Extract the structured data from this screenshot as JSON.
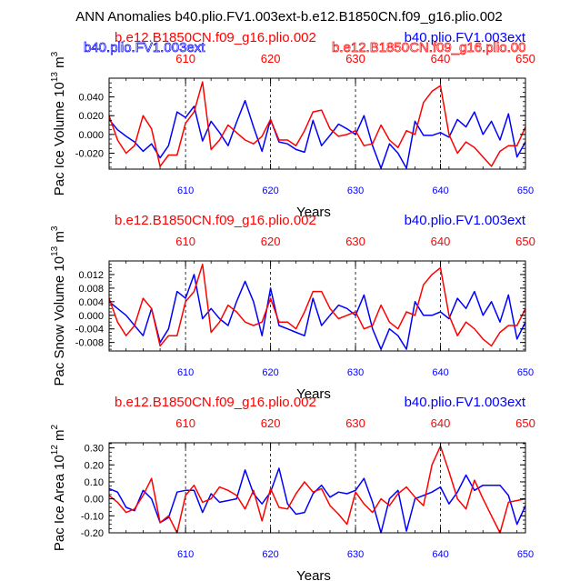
{
  "title": "ANN Anomalies b40.plio.FV1.003ext-b.e12.B1850CN.f09_g16.plio.002",
  "ghost_labels": {
    "blue": "b40.plio.FV1.003ext",
    "red": "b.e12.B1850CN.f09_g16.plio.00"
  },
  "colors": {
    "blue": "#0000ff",
    "red": "#ff0000",
    "axis": "#000000"
  },
  "chart_data": [
    {
      "type": "line",
      "top_label_left": "b.e12.B1850CN.f09_g16.plio.002",
      "top_label_right": "b40.plio.FV1.003ext",
      "xlabel": "Years",
      "ylabel_main": "Pac Ice Volume 10",
      "ylabel_exp": "13",
      "ylabel_unit": " m",
      "ylabel_unit_exp": "3",
      "xlim": [
        601,
        650
      ],
      "ylim": [
        -0.037,
        0.06
      ],
      "yticks": [
        -0.02,
        0.0,
        0.02,
        0.04
      ],
      "ytick_labels": [
        "-0.020",
        "0.000",
        "0.020",
        "0.040"
      ],
      "xticks": [
        610,
        620,
        630,
        640,
        650
      ],
      "xtick_labels": [
        "610",
        "620",
        "630",
        "640",
        "650"
      ],
      "series": [
        {
          "name": "b40.plio.FV1.003ext",
          "color": "blue",
          "x": [
            601,
            602,
            603,
            604,
            605,
            606,
            607,
            608,
            609,
            610,
            611,
            612,
            613,
            614,
            615,
            616,
            617,
            618,
            619,
            620,
            621,
            622,
            623,
            624,
            625,
            626,
            627,
            628,
            629,
            630,
            631,
            632,
            633,
            634,
            635,
            636,
            637,
            638,
            639,
            640,
            641,
            642,
            643,
            644,
            645,
            646,
            647,
            648,
            649,
            650
          ],
          "values": [
            0.016,
            0.005,
            -0.002,
            -0.008,
            -0.018,
            -0.01,
            -0.025,
            -0.012,
            0.024,
            0.018,
            0.03,
            -0.007,
            0.014,
            0.002,
            -0.012,
            0.013,
            0.036,
            0.008,
            -0.018,
            0.016,
            -0.008,
            -0.01,
            -0.016,
            -0.019,
            0.015,
            -0.012,
            -0.001,
            0.011,
            0.006,
            0.0,
            0.02,
            -0.012,
            -0.036,
            -0.01,
            -0.02,
            -0.036,
            0.014,
            -0.001,
            -0.001,
            0.002,
            -0.003,
            0.016,
            0.008,
            0.024,
            0.0,
            0.014,
            -0.006,
            0.022,
            -0.024,
            -0.008
          ]
        },
        {
          "name": "b.e12.B1850CN.f09_g16.plio.002",
          "color": "red",
          "x": [
            601,
            602,
            603,
            604,
            605,
            606,
            607,
            608,
            609,
            610,
            611,
            612,
            613,
            614,
            615,
            616,
            617,
            618,
            619,
            620,
            621,
            622,
            623,
            624,
            625,
            626,
            627,
            628,
            629,
            630,
            631,
            632,
            633,
            634,
            635,
            636,
            637,
            638,
            639,
            640,
            641,
            642,
            643,
            644,
            645,
            646,
            647,
            648,
            649,
            650
          ],
          "values": [
            0.02,
            -0.006,
            -0.02,
            -0.012,
            0.02,
            0.006,
            -0.034,
            -0.022,
            -0.022,
            0.012,
            0.024,
            0.056,
            -0.016,
            -0.006,
            0.01,
            0.002,
            -0.006,
            -0.01,
            -0.002,
            0.016,
            -0.006,
            -0.006,
            -0.012,
            0.004,
            0.024,
            0.026,
            0.006,
            -0.002,
            0.0,
            0.004,
            -0.012,
            -0.01,
            0.01,
            -0.006,
            -0.014,
            0.004,
            0.0,
            0.034,
            0.046,
            0.052,
            0.0,
            -0.02,
            -0.008,
            -0.014,
            -0.024,
            -0.034,
            -0.018,
            -0.012,
            -0.012,
            0.008
          ]
        }
      ]
    },
    {
      "type": "line",
      "top_label_left": "b.e12.B1850CN.f09_g16.plio.002",
      "top_label_right": "b40.plio.FV1.003ext",
      "xlabel": "Years",
      "ylabel_main": "Pac Snow Volume 10",
      "ylabel_exp": "13",
      "ylabel_unit": " m",
      "ylabel_unit_exp": "3",
      "xlim": [
        601,
        650
      ],
      "ylim": [
        -0.0105,
        0.016
      ],
      "yticks": [
        -0.008,
        -0.004,
        0.0,
        0.004,
        0.008,
        0.012
      ],
      "ytick_labels": [
        "-0.008",
        "-0.004",
        "0.000",
        "0.004",
        "0.008",
        "0.012"
      ],
      "xticks": [
        610,
        620,
        630,
        640,
        650
      ],
      "xtick_labels": [
        "610",
        "620",
        "630",
        "640",
        "650"
      ],
      "series": [
        {
          "name": "b40.plio.FV1.003ext",
          "color": "blue",
          "x": [
            601,
            602,
            603,
            604,
            605,
            606,
            607,
            608,
            609,
            610,
            611,
            612,
            613,
            614,
            615,
            616,
            617,
            618,
            619,
            620,
            621,
            622,
            623,
            624,
            625,
            626,
            627,
            628,
            629,
            630,
            631,
            632,
            633,
            634,
            635,
            636,
            637,
            638,
            639,
            640,
            641,
            642,
            643,
            644,
            645,
            646,
            647,
            648,
            649,
            650
          ],
          "values": [
            0.004,
            0.002,
            0.0,
            -0.003,
            -0.006,
            0.002,
            -0.008,
            -0.004,
            0.007,
            0.005,
            0.012,
            -0.001,
            0.002,
            -0.001,
            -0.003,
            0.004,
            0.01,
            0.004,
            -0.006,
            0.008,
            -0.003,
            -0.004,
            -0.005,
            -0.006,
            0.005,
            -0.003,
            0.0,
            0.003,
            0.002,
            0.0,
            0.006,
            -0.004,
            -0.01,
            -0.004,
            -0.006,
            -0.01,
            0.004,
            0.0,
            0.0,
            0.001,
            -0.001,
            0.005,
            0.002,
            0.007,
            0.0,
            0.004,
            -0.002,
            0.006,
            -0.007,
            -0.002
          ]
        },
        {
          "name": "b.e12.B1850CN.f09_g16.plio.002",
          "color": "red",
          "x": [
            601,
            602,
            603,
            604,
            605,
            606,
            607,
            608,
            609,
            610,
            611,
            612,
            613,
            614,
            615,
            616,
            617,
            618,
            619,
            620,
            621,
            622,
            623,
            624,
            625,
            626,
            627,
            628,
            629,
            630,
            631,
            632,
            633,
            634,
            635,
            636,
            637,
            638,
            639,
            640,
            641,
            642,
            643,
            644,
            645,
            646,
            647,
            648,
            649,
            650
          ],
          "values": [
            0.005,
            -0.002,
            -0.006,
            -0.003,
            0.005,
            0.002,
            -0.009,
            -0.006,
            -0.006,
            0.004,
            0.007,
            0.015,
            -0.005,
            -0.002,
            0.003,
            0.001,
            -0.002,
            -0.003,
            -0.002,
            0.005,
            -0.002,
            -0.002,
            -0.004,
            0.001,
            0.007,
            0.007,
            0.002,
            -0.001,
            0.0,
            0.001,
            -0.004,
            -0.003,
            0.003,
            -0.002,
            -0.004,
            0.001,
            0.0,
            0.009,
            0.012,
            0.014,
            0.0,
            -0.006,
            -0.002,
            -0.004,
            -0.007,
            -0.009,
            -0.005,
            -0.003,
            -0.003,
            0.002
          ]
        }
      ]
    },
    {
      "type": "line",
      "top_label_left": "b.e12.B1850CN.f09_g16.plio.002",
      "top_label_right": "b40.plio.FV1.003ext",
      "xlabel": "Years",
      "ylabel_main": "Pac Ice Area 10",
      "ylabel_exp": "12",
      "ylabel_unit": " m",
      "ylabel_unit_exp": "2",
      "xlim": [
        601,
        650
      ],
      "ylim": [
        -0.2,
        0.33
      ],
      "yticks": [
        -0.2,
        -0.1,
        0.0,
        0.1,
        0.2,
        0.3
      ],
      "ytick_labels": [
        "-0.20",
        "-0.10",
        "0.00",
        "0.10",
        "0.20",
        "0.30"
      ],
      "xticks": [
        610,
        620,
        630,
        640,
        650
      ],
      "xtick_labels": [
        "610",
        "620",
        "630",
        "640",
        "650"
      ],
      "series": [
        {
          "name": "b40.plio.FV1.003ext",
          "color": "blue",
          "x": [
            601,
            602,
            603,
            604,
            605,
            606,
            607,
            608,
            609,
            610,
            611,
            612,
            613,
            614,
            615,
            616,
            617,
            618,
            619,
            620,
            621,
            622,
            623,
            624,
            625,
            626,
            627,
            628,
            629,
            630,
            631,
            632,
            633,
            634,
            635,
            636,
            637,
            638,
            639,
            640,
            641,
            642,
            643,
            644,
            645,
            646,
            647,
            648,
            649,
            650
          ],
          "values": [
            0.06,
            0.04,
            -0.05,
            -0.07,
            0.05,
            0.0,
            -0.14,
            -0.11,
            0.04,
            0.05,
            0.05,
            -0.08,
            0.03,
            -0.02,
            -0.01,
            0.0,
            0.17,
            0.03,
            -0.03,
            0.04,
            0.18,
            -0.03,
            -0.09,
            -0.08,
            0.03,
            0.08,
            0.01,
            0.04,
            0.03,
            0.05,
            0.12,
            -0.02,
            -0.2,
            0.0,
            0.05,
            -0.19,
            0.0,
            0.02,
            0.04,
            0.07,
            -0.03,
            0.04,
            0.14,
            0.05,
            0.08,
            0.08,
            0.08,
            0.02,
            -0.15,
            -0.04
          ]
        },
        {
          "name": "b.e12.B1850CN.f09_g16.plio.002",
          "color": "red",
          "x": [
            601,
            602,
            603,
            604,
            605,
            606,
            607,
            608,
            609,
            610,
            611,
            612,
            613,
            614,
            615,
            616,
            617,
            618,
            619,
            620,
            621,
            622,
            623,
            624,
            625,
            626,
            627,
            628,
            629,
            630,
            631,
            632,
            633,
            634,
            635,
            636,
            637,
            638,
            639,
            640,
            641,
            642,
            643,
            644,
            645,
            646,
            647,
            648,
            649,
            650
          ],
          "values": [
            0.02,
            -0.02,
            -0.08,
            -0.06,
            0.02,
            0.12,
            -0.14,
            -0.1,
            -0.2,
            0.02,
            0.08,
            -0.02,
            0.0,
            0.07,
            0.05,
            0.02,
            -0.06,
            0.05,
            -0.13,
            0.06,
            -0.05,
            -0.06,
            0.03,
            0.1,
            0.04,
            0.06,
            -0.04,
            -0.09,
            -0.15,
            0.04,
            -0.03,
            -0.08,
            0.0,
            -0.04,
            0.03,
            0.07,
            0.01,
            -0.04,
            0.2,
            0.31,
            0.16,
            0.0,
            -0.06,
            0.11,
            0.0,
            -0.1,
            -0.2,
            -0.02,
            -0.01,
            0.0
          ]
        }
      ]
    }
  ]
}
